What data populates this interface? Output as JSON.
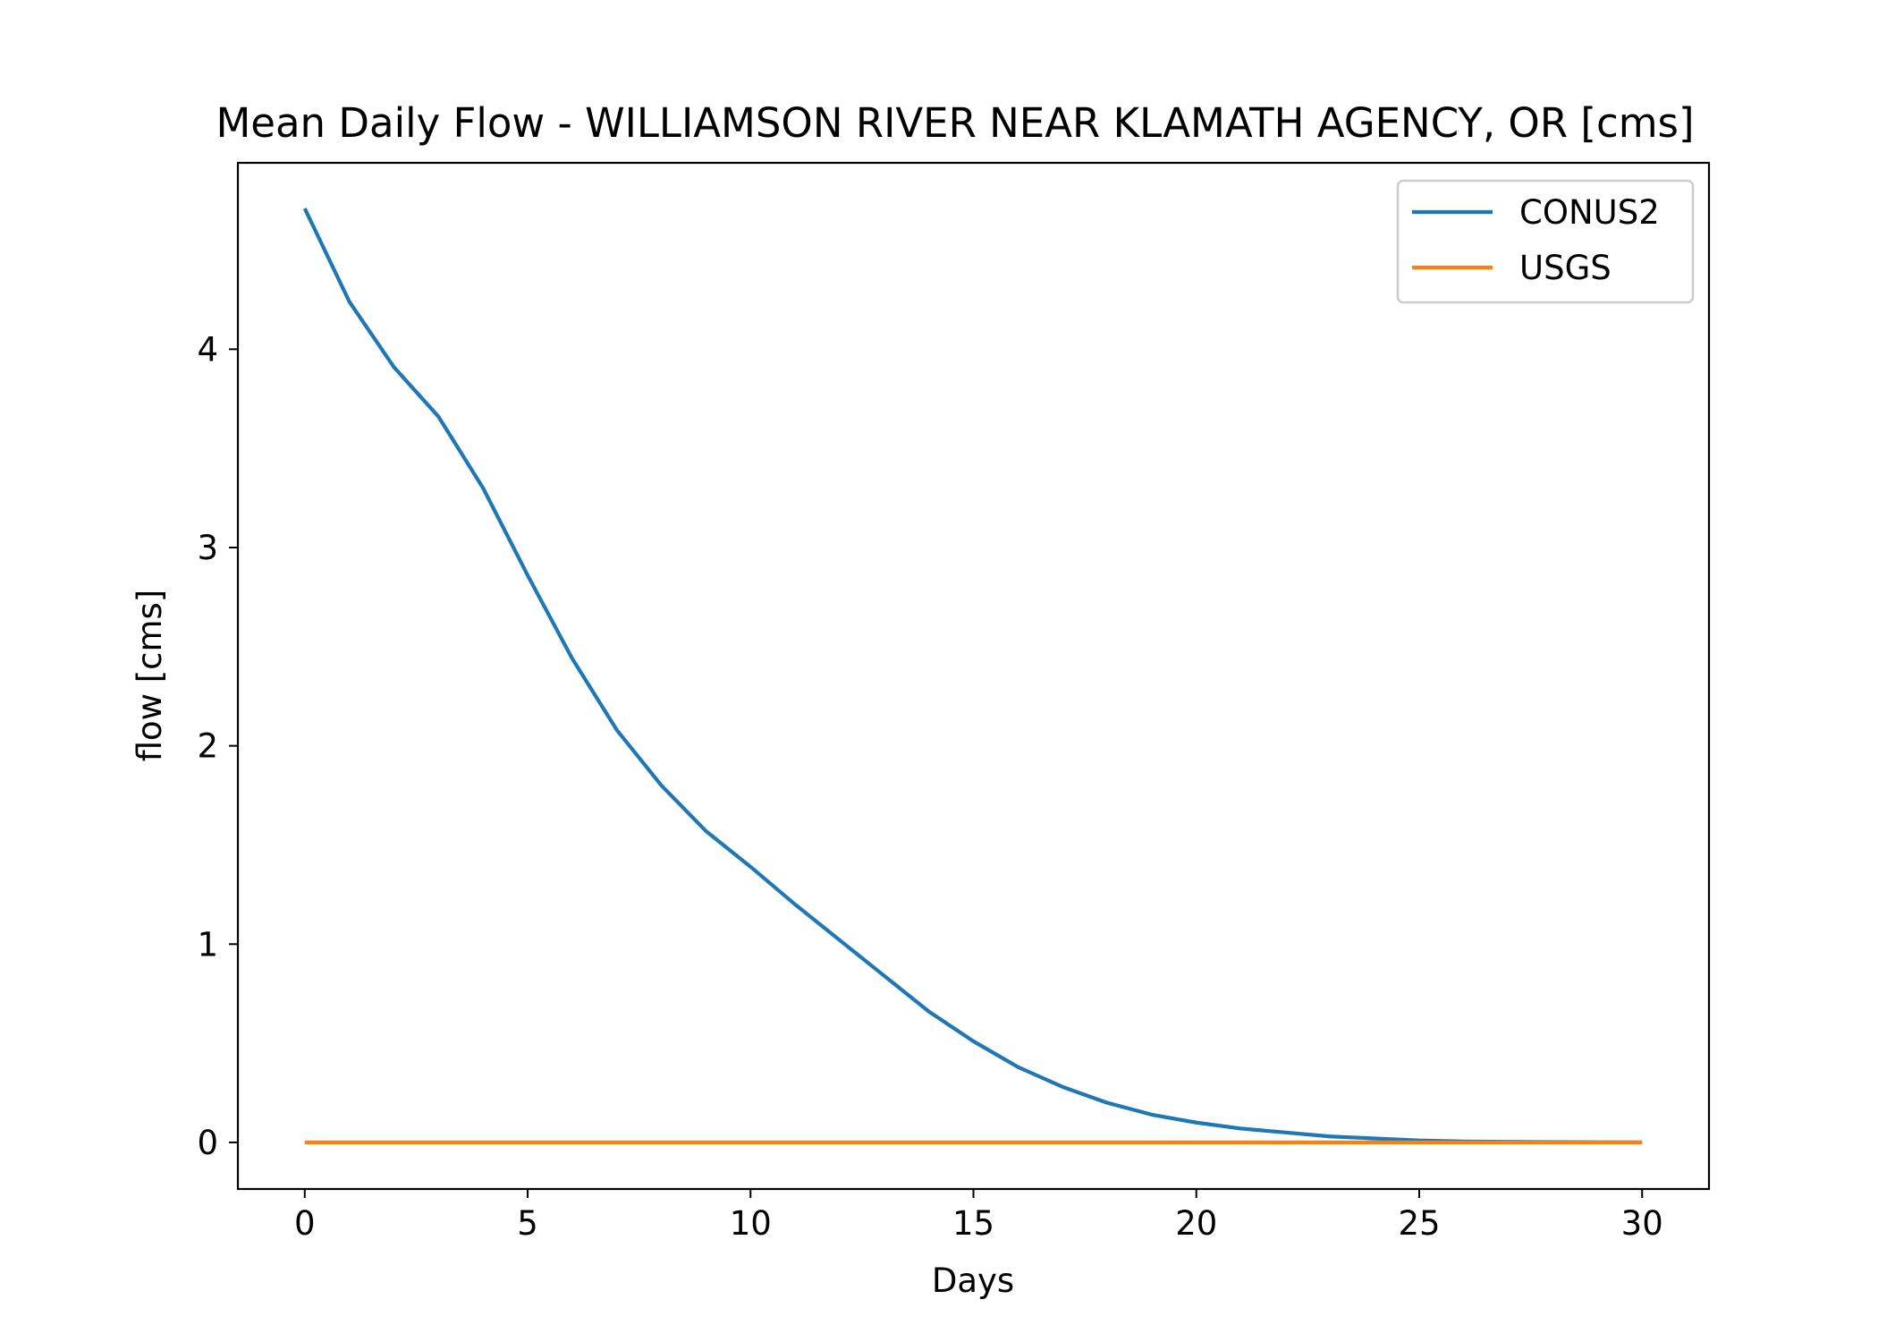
{
  "chart_data": {
    "type": "line",
    "title": "Mean Daily Flow - WILLIAMSON RIVER NEAR KLAMATH AGENCY, OR [cms]",
    "xlabel": "Days",
    "ylabel": "flow [cms]",
    "xlim": [
      -1.5,
      31.5
    ],
    "ylim": [
      -0.235,
      4.94
    ],
    "xticks": [
      0,
      5,
      10,
      15,
      20,
      25,
      30
    ],
    "yticks": [
      0,
      1,
      2,
      3,
      4
    ],
    "grid": false,
    "legend_position": "top-right",
    "x": [
      0,
      1,
      2,
      3,
      4,
      5,
      6,
      7,
      8,
      9,
      10,
      11,
      12,
      13,
      14,
      15,
      16,
      17,
      18,
      19,
      20,
      21,
      22,
      23,
      24,
      25,
      26,
      27,
      28,
      29,
      30
    ],
    "series": [
      {
        "name": "CONUS2",
        "color": "#1f77b4",
        "values": [
          4.71,
          4.24,
          3.91,
          3.66,
          3.3,
          2.86,
          2.44,
          2.08,
          1.8,
          1.57,
          1.39,
          1.2,
          1.02,
          0.84,
          0.66,
          0.51,
          0.38,
          0.28,
          0.2,
          0.14,
          0.1,
          0.07,
          0.05,
          0.03,
          0.02,
          0.01,
          0.005,
          0.003,
          0.002,
          0.001,
          0.0
        ]
      },
      {
        "name": "USGS",
        "color": "#ff7f0e",
        "values": [
          0,
          0,
          0,
          0,
          0,
          0,
          0,
          0,
          0,
          0,
          0,
          0,
          0,
          0,
          0,
          0,
          0,
          0,
          0,
          0,
          0,
          0,
          0,
          0,
          0,
          0,
          0,
          0,
          0,
          0,
          0
        ]
      }
    ]
  }
}
